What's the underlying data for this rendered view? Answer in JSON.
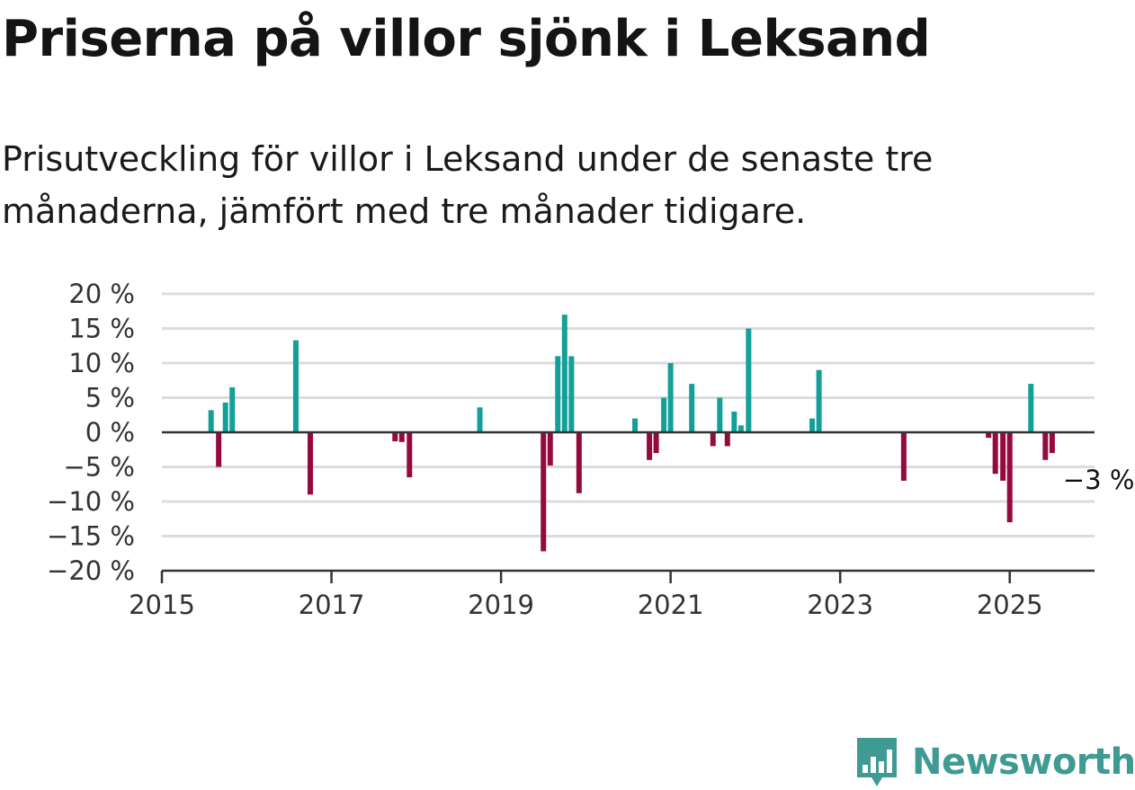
{
  "header": {
    "title": "Priserna på villor sjönk i Leksand",
    "subtitle": "Prisutveckling för villor i Leksand under de senaste tre månaderna, jämfört med tre månader tidigare."
  },
  "branding": {
    "name": "Newsworthy"
  },
  "colors": {
    "positive": "#13a098",
    "negative": "#950a3e",
    "grid": "#dcdcdc",
    "axis": "#333333",
    "brand": "#3e9a93"
  },
  "chart_data": {
    "type": "bar",
    "ylim": [
      -20,
      20
    ],
    "yticks": [
      20,
      15,
      10,
      5,
      0,
      -5,
      -10,
      -15,
      -20
    ],
    "ytick_labels": [
      "20 %",
      "15 %",
      "10 %",
      "5 %",
      "0 %",
      "−5 %",
      "−10 %",
      "−15 %",
      "−20 %"
    ],
    "xlim": [
      2015,
      2026
    ],
    "xticks": [
      2015,
      2017,
      2019,
      2021,
      2023,
      2025
    ],
    "xtick_labels": [
      "2015",
      "2017",
      "2019",
      "2021",
      "2023",
      "2025"
    ],
    "grid": true,
    "annotation": {
      "text": "−3 %",
      "x": 2025.5,
      "y": -3
    },
    "x": [
      2015.58,
      2015.67,
      2015.75,
      2015.83,
      2016.58,
      2016.75,
      2017.75,
      2017.83,
      2017.92,
      2018.75,
      2019.5,
      2019.58,
      2019.67,
      2019.75,
      2019.83,
      2019.92,
      2020.58,
      2020.75,
      2020.83,
      2020.92,
      2021.0,
      2021.25,
      2021.5,
      2021.58,
      2021.67,
      2021.75,
      2021.83,
      2021.92,
      2022.67,
      2022.75,
      2023.75,
      2024.75,
      2024.83,
      2024.92,
      2025.0,
      2025.25,
      2025.42,
      2025.5
    ],
    "values": [
      3.2,
      -5.0,
      4.3,
      6.5,
      13.3,
      -9.0,
      -1.3,
      -1.4,
      -6.5,
      3.6,
      -17.2,
      -4.8,
      11.0,
      17.0,
      11.0,
      -8.8,
      2.0,
      -4.0,
      -3.0,
      5.0,
      10.0,
      7.0,
      -2.0,
      5.0,
      -2.0,
      3.0,
      1.0,
      15.0,
      2.0,
      9.0,
      -7.0,
      -0.8,
      -6.0,
      -7.0,
      -13.0,
      7.0,
      -4.0,
      -3.0
    ]
  }
}
